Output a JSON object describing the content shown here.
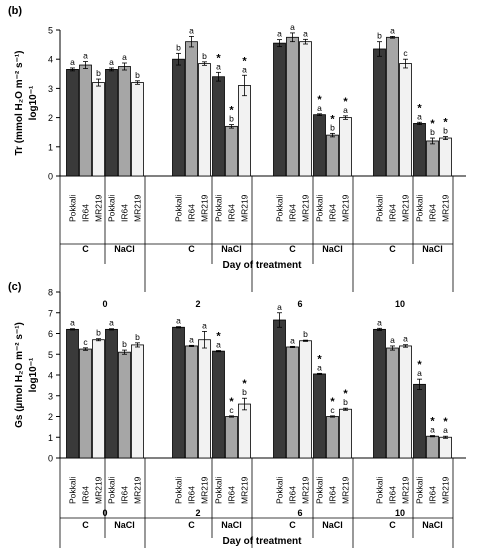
{
  "colors": {
    "pokkali": "#3a3a3a",
    "ir64": "#a6a6a6",
    "mr219": "#f2f2f2",
    "star": "#e8232a",
    "axis": "#000000"
  },
  "conditions": [
    "C",
    "NaCl"
  ],
  "days": [
    "0",
    "2",
    "6",
    "10"
  ],
  "xlabel": "Day of treatment",
  "chart_data": [
    {
      "type": "bar",
      "panel": "(b)",
      "ylabel": "Tr (mmol H₂O m⁻² s⁻¹) log10⁻¹",
      "ylabel_lines": [
        "Tr (mmol H₂O m⁻² s⁻¹)",
        "log10⁻¹"
      ],
      "ylim": [
        0,
        5
      ],
      "yticks": [
        "0",
        "1",
        "2",
        "3",
        "4",
        "5"
      ],
      "categories": [
        "Pokkali",
        "IR64",
        "MR219"
      ],
      "groups": [
        {
          "day": "0",
          "condition": "C",
          "values": [
            3.65,
            3.8,
            3.2
          ],
          "errors": [
            0.05,
            0.12,
            0.12
          ],
          "letters": [
            "a",
            "a",
            "b"
          ],
          "stars": [
            false,
            false,
            false
          ]
        },
        {
          "day": "0",
          "condition": "NaCl",
          "values": [
            3.65,
            3.75,
            3.2
          ],
          "errors": [
            0.05,
            0.12,
            0.06
          ],
          "letters": [
            "a",
            "a",
            "b"
          ],
          "stars": [
            false,
            false,
            false
          ]
        },
        {
          "day": "2",
          "condition": "C",
          "values": [
            4.0,
            4.6,
            3.85
          ],
          "errors": [
            0.2,
            0.18,
            0.06
          ],
          "letters": [
            "b",
            "a",
            "b"
          ],
          "stars": [
            false,
            false,
            false
          ]
        },
        {
          "day": "2",
          "condition": "NaCl",
          "values": [
            3.4,
            1.7,
            3.1
          ],
          "errors": [
            0.15,
            0.06,
            0.35
          ],
          "letters": [
            "a",
            "b",
            "a"
          ],
          "stars": [
            true,
            true,
            true
          ]
        },
        {
          "day": "6",
          "condition": "C",
          "values": [
            4.55,
            4.75,
            4.6
          ],
          "errors": [
            0.12,
            0.15,
            0.08
          ],
          "letters": [
            "a",
            "a",
            "a"
          ],
          "stars": [
            false,
            false,
            false
          ]
        },
        {
          "day": "6",
          "condition": "NaCl",
          "values": [
            2.1,
            1.4,
            2.0
          ],
          "errors": [
            0.03,
            0.06,
            0.06
          ],
          "letters": [
            "a",
            "b",
            "a"
          ],
          "stars": [
            true,
            true,
            true
          ]
        },
        {
          "day": "10",
          "condition": "C",
          "values": [
            4.35,
            4.75,
            3.85
          ],
          "errors": [
            0.25,
            0.03,
            0.15
          ],
          "letters": [
            "b",
            "a",
            "c"
          ],
          "stars": [
            false,
            false,
            false
          ]
        },
        {
          "day": "10",
          "condition": "NaCl",
          "values": [
            1.8,
            1.2,
            1.3
          ],
          "errors": [
            0.04,
            0.1,
            0.05
          ],
          "letters": [
            "a",
            "b",
            "b"
          ],
          "stars": [
            true,
            true,
            true
          ]
        }
      ]
    },
    {
      "type": "bar",
      "panel": "(c)",
      "ylabel": "Gs (µmol H₂O m⁻² s⁻¹) log10⁻¹",
      "ylabel_lines": [
        "Gs (µmol H₂O m⁻² s⁻¹)",
        "log10⁻¹"
      ],
      "ylim": [
        0,
        8
      ],
      "yticks": [
        "0",
        "1",
        "2",
        "3",
        "4",
        "5",
        "6",
        "7",
        "8"
      ],
      "categories": [
        "Pokkali",
        "IR64",
        "MR219"
      ],
      "groups": [
        {
          "day": "0",
          "condition": "C",
          "values": [
            6.2,
            5.25,
            5.7
          ],
          "errors": [
            0.03,
            0.06,
            0.05
          ],
          "letters": [
            "a",
            "c",
            "b"
          ],
          "stars": [
            false,
            false,
            false
          ]
        },
        {
          "day": "0",
          "condition": "NaCl",
          "values": [
            6.2,
            5.1,
            5.45
          ],
          "errors": [
            0.03,
            0.1,
            0.1
          ],
          "letters": [
            "a",
            "b",
            "b"
          ],
          "stars": [
            false,
            false,
            false
          ]
        },
        {
          "day": "2",
          "condition": "C",
          "values": [
            6.3,
            5.4,
            5.7
          ],
          "errors": [
            0.03,
            0.03,
            0.4
          ],
          "letters": [
            "a",
            "a",
            "a"
          ],
          "stars": [
            false,
            false,
            false
          ]
        },
        {
          "day": "2",
          "condition": "NaCl",
          "values": [
            5.15,
            2.0,
            2.6
          ],
          "errors": [
            0.03,
            0.03,
            0.28
          ],
          "letters": [
            "a",
            "c",
            "b"
          ],
          "stars": [
            true,
            true,
            true
          ]
        },
        {
          "day": "6",
          "condition": "C",
          "values": [
            6.65,
            5.35,
            5.65
          ],
          "errors": [
            0.35,
            0.03,
            0.03
          ],
          "letters": [
            "a",
            "a",
            "b"
          ],
          "stars": [
            false,
            false,
            false
          ]
        },
        {
          "day": "6",
          "condition": "NaCl",
          "values": [
            4.05,
            2.0,
            2.35
          ],
          "errors": [
            0.03,
            0.03,
            0.05
          ],
          "letters": [
            "a",
            "c",
            "b"
          ],
          "stars": [
            true,
            true,
            true
          ]
        },
        {
          "day": "10",
          "condition": "C",
          "values": [
            6.2,
            5.3,
            5.4
          ],
          "errors": [
            0.05,
            0.1,
            0.06
          ],
          "letters": [
            "a",
            "a",
            "a"
          ],
          "stars": [
            false,
            false,
            false
          ]
        },
        {
          "day": "10",
          "condition": "NaCl",
          "values": [
            3.55,
            1.05,
            1.0
          ],
          "errors": [
            0.25,
            0.03,
            0.05
          ],
          "letters": [
            "a",
            "a",
            "a"
          ],
          "stars": [
            true,
            true,
            true
          ]
        }
      ]
    }
  ]
}
